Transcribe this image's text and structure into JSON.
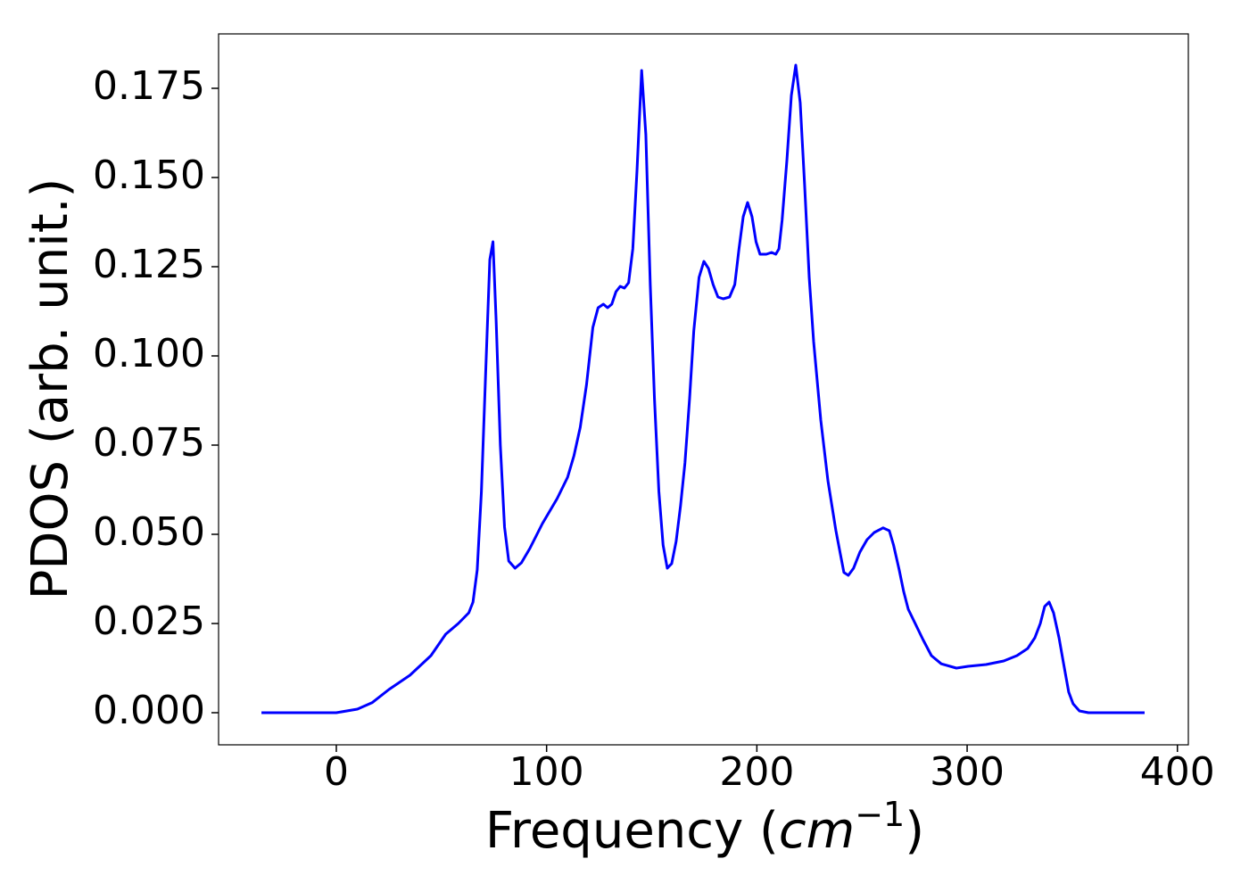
{
  "chart_data": {
    "type": "line",
    "xlabel": {
      "prefix": "Frequency (",
      "unit": "cm",
      "exponent": "−1",
      "suffix": ")"
    },
    "ylabel": "PDOS (arb. unit.)",
    "series": [
      {
        "color": "#0000ff",
        "x": [
          -35.6,
          0,
          10,
          17,
          25,
          35,
          45,
          52,
          58,
          63,
          65,
          67,
          69,
          71,
          73,
          74.5,
          76,
          78,
          80,
          82,
          85,
          88,
          92,
          98,
          105,
          110,
          113,
          116,
          119,
          122,
          124.5,
          127,
          129,
          131,
          133,
          135,
          137,
          139,
          141,
          143,
          145.2,
          147.2,
          149.3,
          151.3,
          153.4,
          155.4,
          157.4,
          159.5,
          161.6,
          163.7,
          165.8,
          168,
          170,
          172.5,
          174.8,
          177,
          179.2,
          181.5,
          184,
          187,
          189.5,
          191.5,
          193.5,
          195.6,
          197.7,
          199.6,
          201.5,
          204.5,
          207,
          209,
          210.5,
          212,
          214.3,
          216.4,
          218.5,
          220.6,
          222.7,
          224.9,
          227,
          230.4,
          233.8,
          237.6,
          239.7,
          241.4,
          243.5,
          246,
          249,
          252.4,
          255.8,
          260,
          263,
          265,
          267.7,
          269.8,
          272,
          275.3,
          279,
          283,
          287.7,
          294.9,
          300.4,
          309,
          317.4,
          323.7,
          328.8,
          332.2,
          334.8,
          336.9,
          339,
          341.1,
          343.7,
          345.8,
          348.3,
          350.4,
          353.4,
          357.7,
          384.4
        ],
        "values": [
          0,
          0,
          0.001,
          0.0028,
          0.0065,
          0.0105,
          0.016,
          0.022,
          0.025,
          0.028,
          0.031,
          0.04,
          0.062,
          0.095,
          0.127,
          0.132,
          0.11,
          0.075,
          0.052,
          0.0425,
          0.0405,
          0.042,
          0.046,
          0.053,
          0.06,
          0.066,
          0.072,
          0.08,
          0.092,
          0.108,
          0.1135,
          0.1145,
          0.1135,
          0.1145,
          0.118,
          0.1195,
          0.119,
          0.1205,
          0.13,
          0.152,
          0.18,
          0.162,
          0.12,
          0.088,
          0.062,
          0.047,
          0.0405,
          0.0418,
          0.048,
          0.058,
          0.07,
          0.088,
          0.107,
          0.122,
          0.1265,
          0.1245,
          0.12,
          0.1165,
          0.116,
          0.1165,
          0.12,
          0.13,
          0.139,
          0.143,
          0.139,
          0.132,
          0.1285,
          0.1285,
          0.129,
          0.1285,
          0.13,
          0.138,
          0.155,
          0.173,
          0.1815,
          0.171,
          0.148,
          0.122,
          0.104,
          0.082,
          0.065,
          0.051,
          0.0445,
          0.0393,
          0.0385,
          0.0405,
          0.045,
          0.0485,
          0.0505,
          0.0518,
          0.051,
          0.047,
          0.04,
          0.034,
          0.029,
          0.025,
          0.0205,
          0.016,
          0.0137,
          0.0125,
          0.013,
          0.0135,
          0.0145,
          0.016,
          0.018,
          0.021,
          0.025,
          0.0298,
          0.031,
          0.028,
          0.021,
          0.014,
          0.0058,
          0.0025,
          0.0005,
          0,
          0
        ]
      }
    ],
    "xlim": [
      -56,
      405.2
    ],
    "xticks": [
      0,
      100,
      200,
      300,
      400
    ],
    "ylim": [
      -0.009,
      0.19025
    ],
    "yticks": [
      {
        "value": 0,
        "label": "0.000"
      },
      {
        "value": 0.025,
        "label": "0.025"
      },
      {
        "value": 0.05,
        "label": "0.050"
      },
      {
        "value": 0.075,
        "label": "0.075"
      },
      {
        "value": 0.1,
        "label": "0.100"
      },
      {
        "value": 0.125,
        "label": "0.125"
      },
      {
        "value": 0.15,
        "label": "0.150"
      },
      {
        "value": 0.175,
        "label": "0.175"
      }
    ],
    "grid": false
  }
}
